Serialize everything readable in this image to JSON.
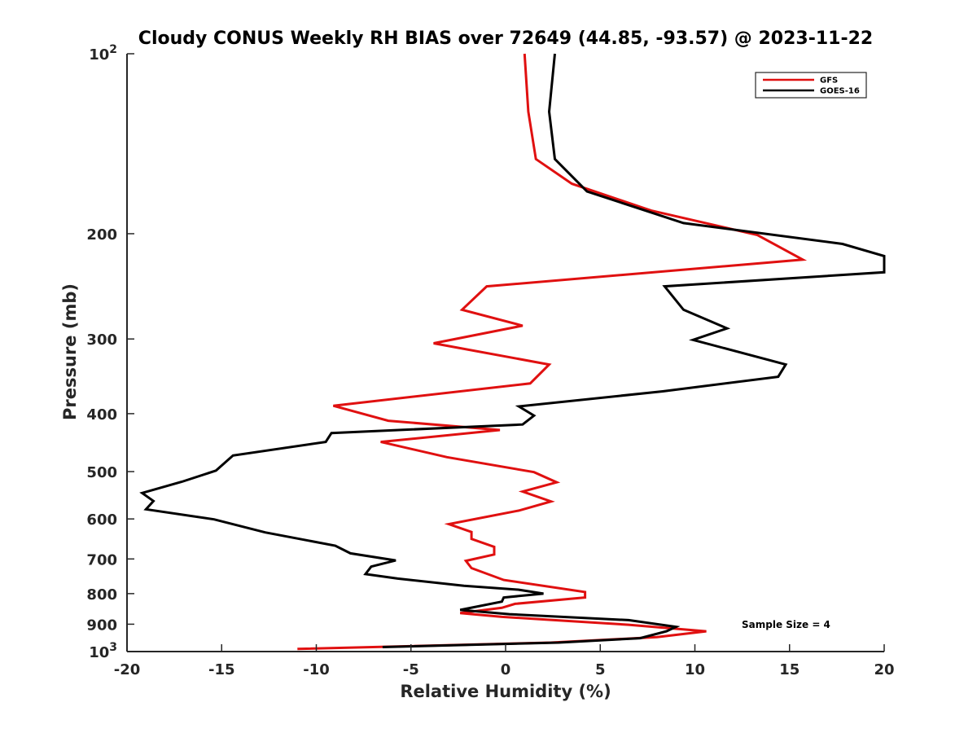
{
  "chart_data": {
    "type": "line",
    "title": "Cloudy CONUS Weekly RH BIAS over 72649 (44.85, -93.57) @ 2023-11-22",
    "xlabel": "Relative Humidity (%)",
    "ylabel": "Pressure (mb)",
    "xlim": [
      -20,
      20
    ],
    "ylim": [
      100,
      1000
    ],
    "y_scale": "log",
    "y_reversed": true,
    "x_ticks": [
      "-20",
      "-15",
      "-10",
      "-5",
      "0",
      "5",
      "10",
      "15",
      "20"
    ],
    "y_ticks": [
      {
        "value": 100,
        "label": "10",
        "sup": "2"
      },
      {
        "value": 200,
        "label": "200",
        "sup": ""
      },
      {
        "value": 300,
        "label": "300",
        "sup": ""
      },
      {
        "value": 400,
        "label": "400",
        "sup": ""
      },
      {
        "value": 500,
        "label": "500",
        "sup": ""
      },
      {
        "value": 600,
        "label": "600",
        "sup": ""
      },
      {
        "value": 700,
        "label": "700",
        "sup": ""
      },
      {
        "value": 800,
        "label": "800",
        "sup": ""
      },
      {
        "value": 900,
        "label": "900",
        "sup": ""
      },
      {
        "value": 1000,
        "label": "10",
        "sup": "3"
      }
    ],
    "grid": false,
    "legend_position": "top-right",
    "annotation": "Sample Size = 4",
    "series": [
      {
        "name": "GFS",
        "color": "#e01010",
        "points": [
          [
            1.0,
            100
          ],
          [
            1.2,
            125
          ],
          [
            1.6,
            150
          ],
          [
            3.5,
            165
          ],
          [
            7.7,
            183
          ],
          [
            13.3,
            201
          ],
          [
            15.7,
            221
          ],
          [
            -1.0,
            245
          ],
          [
            -2.3,
            268
          ],
          [
            0.9,
            285
          ],
          [
            -3.8,
            305
          ],
          [
            2.3,
            331
          ],
          [
            1.3,
            356
          ],
          [
            -9.1,
            388
          ],
          [
            -6.2,
            411
          ],
          [
            -0.3,
            426
          ],
          [
            -6.6,
            446
          ],
          [
            -3.1,
            473
          ],
          [
            1.5,
            501
          ],
          [
            2.7,
            521
          ],
          [
            0.9,
            540
          ],
          [
            2.4,
            561
          ],
          [
            0.7,
            581
          ],
          [
            -3.0,
            612
          ],
          [
            -1.8,
            631
          ],
          [
            -1.8,
            648
          ],
          [
            -0.6,
            668
          ],
          [
            -0.6,
            688
          ],
          [
            -2.1,
            705
          ],
          [
            -1.8,
            725
          ],
          [
            -0.1,
            759
          ],
          [
            4.2,
            795
          ],
          [
            4.2,
            812
          ],
          [
            0.5,
            832
          ],
          [
            -0.2,
            845
          ],
          [
            -2.4,
            862
          ],
          [
            -0.2,
            875
          ],
          [
            6.5,
            902
          ],
          [
            10.6,
            925
          ],
          [
            8.0,
            946
          ],
          [
            2.4,
            966
          ],
          [
            -11.0,
            990
          ]
        ]
      },
      {
        "name": "GOES-16",
        "color": "#000000",
        "points": [
          [
            2.6,
            100
          ],
          [
            2.3,
            125
          ],
          [
            2.6,
            150
          ],
          [
            4.3,
            170
          ],
          [
            9.4,
            192
          ],
          [
            17.8,
            208
          ],
          [
            20.0,
            218
          ],
          [
            20.0,
            232
          ],
          [
            8.4,
            245
          ],
          [
            9.4,
            268
          ],
          [
            11.7,
            288
          ],
          [
            9.9,
            301
          ],
          [
            14.8,
            331
          ],
          [
            14.4,
            347
          ],
          [
            8.3,
            367
          ],
          [
            0.7,
            389
          ],
          [
            1.5,
            403
          ],
          [
            0.9,
            417
          ],
          [
            -9.2,
            431
          ],
          [
            -9.5,
            446
          ],
          [
            -14.4,
            470
          ],
          [
            -15.3,
            498
          ],
          [
            -17.1,
            520
          ],
          [
            -19.2,
            543
          ],
          [
            -18.6,
            560
          ],
          [
            -19.0,
            578
          ],
          [
            -15.4,
            601
          ],
          [
            -12.7,
            632
          ],
          [
            -9.0,
            665
          ],
          [
            -8.2,
            685
          ],
          [
            -5.8,
            704
          ],
          [
            -7.1,
            721
          ],
          [
            -7.4,
            742
          ],
          [
            -5.7,
            755
          ],
          [
            -2.2,
            776
          ],
          [
            0.7,
            788
          ],
          [
            2.0,
            800
          ],
          [
            -0.1,
            812
          ],
          [
            -0.2,
            825
          ],
          [
            -2.4,
            852
          ],
          [
            0.2,
            866
          ],
          [
            6.5,
            886
          ],
          [
            9.0,
            909
          ],
          [
            8.5,
            925
          ],
          [
            7.1,
            950
          ],
          [
            2.8,
            966
          ],
          [
            -6.5,
            983
          ]
        ]
      }
    ]
  }
}
